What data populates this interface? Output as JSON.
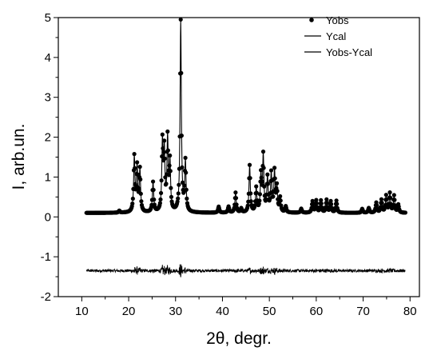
{
  "chart_data": {
    "type": "line",
    "xlabel": "2θ, degr.",
    "ylabel": "I, arb.un.",
    "xlim": [
      5,
      82
    ],
    "ylim": [
      -2,
      5
    ],
    "xticks": [
      10,
      20,
      30,
      40,
      50,
      60,
      70,
      80
    ],
    "yticks": [
      -2,
      -1,
      0,
      1,
      2,
      3,
      4,
      5
    ],
    "grid": false,
    "legend_position": "top-right",
    "legend": [
      {
        "label": "Yobs",
        "marker": "dot"
      },
      {
        "label": "Ycal",
        "marker": "line"
      },
      {
        "label": "Yobs-Ycal",
        "marker": "line"
      }
    ],
    "background": 0.1,
    "difference_offset": -1.35,
    "peaks": [
      [
        18.0,
        0.05
      ],
      [
        21.2,
        1.38
      ],
      [
        21.8,
        1.1
      ],
      [
        22.4,
        1.05
      ],
      [
        25.2,
        0.75
      ],
      [
        27.2,
        1.7
      ],
      [
        27.6,
        1.45
      ],
      [
        28.3,
        1.8
      ],
      [
        28.8,
        1.2
      ],
      [
        31.1,
        4.8
      ],
      [
        32.1,
        1.25
      ],
      [
        39.2,
        0.15
      ],
      [
        41.3,
        0.15
      ],
      [
        42.8,
        0.5
      ],
      [
        44.0,
        0.1
      ],
      [
        45.8,
        1.18
      ],
      [
        47.2,
        0.6
      ],
      [
        48.2,
        0.9
      ],
      [
        48.7,
        1.4
      ],
      [
        49.6,
        0.85
      ],
      [
        50.4,
        0.95
      ],
      [
        51.1,
        1.0
      ],
      [
        51.6,
        0.6
      ],
      [
        52.3,
        0.35
      ],
      [
        53.5,
        0.15
      ],
      [
        56.8,
        0.1
      ],
      [
        59.2,
        0.28
      ],
      [
        60.0,
        0.3
      ],
      [
        61.0,
        0.3
      ],
      [
        62.2,
        0.32
      ],
      [
        63.1,
        0.28
      ],
      [
        64.3,
        0.3
      ],
      [
        69.8,
        0.1
      ],
      [
        71.2,
        0.12
      ],
      [
        72.8,
        0.25
      ],
      [
        73.9,
        0.32
      ],
      [
        74.9,
        0.42
      ],
      [
        75.7,
        0.48
      ],
      [
        76.6,
        0.42
      ],
      [
        77.5,
        0.2
      ]
    ],
    "series": [
      {
        "name": "Yobs",
        "x_range": [
          11,
          79
        ],
        "step": 0.1
      },
      {
        "name": "Ycal",
        "x_range": [
          11,
          79
        ],
        "step": 0.05
      },
      {
        "name": "Yobs-Ycal",
        "x_range": [
          11,
          79
        ],
        "step": 0.05
      }
    ]
  }
}
